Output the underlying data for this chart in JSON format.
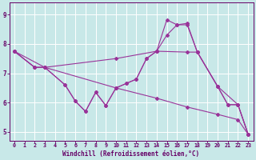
{
  "background_color": "#c8e8e8",
  "plot_bg_color": "#c8e8e8",
  "line_color": "#993399",
  "grid_color": "#ffffff",
  "xlabel": "Windchill (Refroidissement éolien,°C)",
  "xlabel_color": "#660066",
  "tick_color": "#660066",
  "xlim": [
    -0.5,
    23.5
  ],
  "ylim": [
    4.7,
    9.4
  ],
  "yticks": [
    5,
    6,
    7,
    8,
    9
  ],
  "xticks": [
    0,
    1,
    2,
    3,
    4,
    5,
    6,
    7,
    8,
    9,
    10,
    11,
    12,
    13,
    14,
    15,
    16,
    17,
    18,
    19,
    20,
    21,
    22,
    23
  ],
  "series": [
    {
      "x": [
        0,
        3,
        10,
        14,
        17,
        20,
        22,
        23
      ],
      "y": [
        7.75,
        7.2,
        6.5,
        6.15,
        5.85,
        5.6,
        5.42,
        4.92
      ]
    },
    {
      "x": [
        0,
        2,
        3,
        10,
        14,
        17,
        18,
        20,
        22,
        23
      ],
      "y": [
        7.75,
        7.2,
        7.2,
        7.5,
        7.75,
        7.72,
        7.72,
        6.55,
        5.93,
        4.92
      ]
    },
    {
      "x": [
        0,
        2,
        3,
        5,
        6,
        7,
        8,
        9,
        10,
        11,
        12,
        13,
        14,
        15,
        16,
        17,
        18,
        20,
        21,
        22,
        23
      ],
      "y": [
        7.75,
        7.2,
        7.2,
        6.6,
        6.05,
        5.7,
        6.35,
        5.9,
        6.5,
        6.65,
        6.8,
        7.5,
        7.75,
        8.3,
        8.65,
        8.7,
        7.72,
        6.55,
        5.93,
        5.93,
        4.92
      ]
    },
    {
      "x": [
        0,
        2,
        3,
        5,
        6,
        7,
        8,
        9,
        10,
        11,
        12,
        13,
        14,
        15,
        16,
        17,
        18,
        20,
        21,
        22,
        23
      ],
      "y": [
        7.75,
        7.2,
        7.2,
        6.6,
        6.05,
        5.7,
        6.35,
        5.9,
        6.5,
        6.65,
        6.8,
        7.5,
        7.75,
        8.82,
        8.65,
        8.65,
        7.72,
        6.55,
        5.93,
        5.93,
        4.92
      ]
    }
  ]
}
